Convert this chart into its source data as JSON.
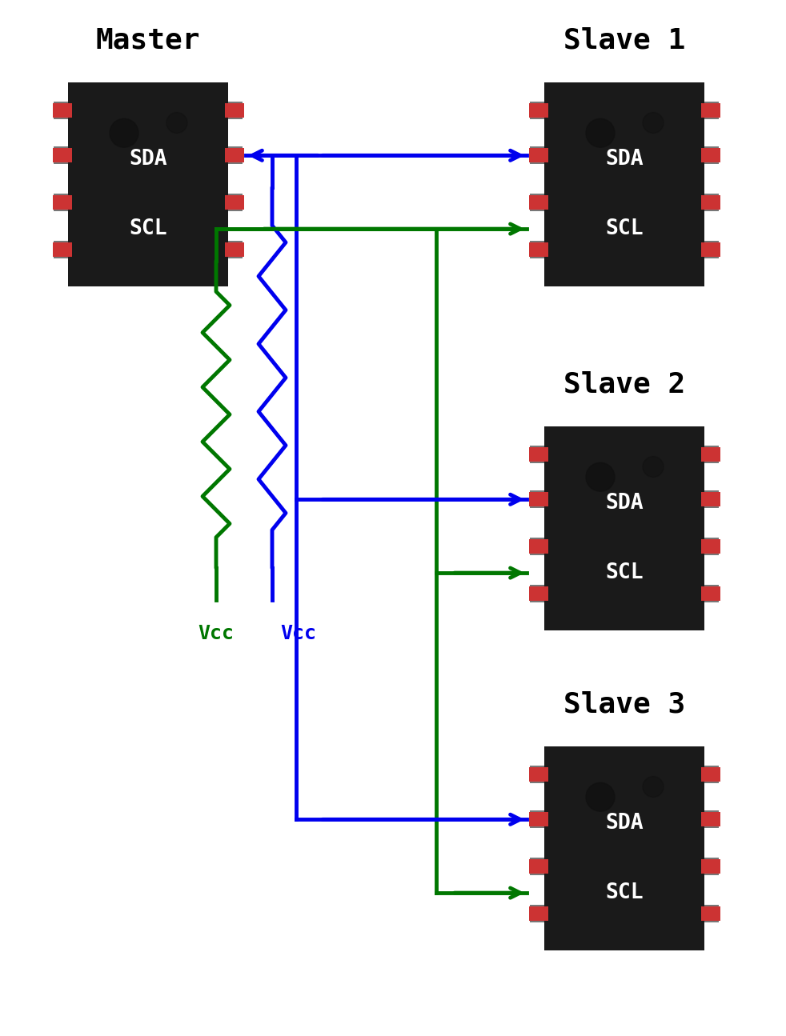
{
  "bg_color": "#ffffff",
  "blue": "#0000EE",
  "green": "#007700",
  "red_pad": "#CC3333",
  "chip_color": "#1a1a1a",
  "pad_color": "#777777",
  "master_label": "Master",
  "slave_labels": [
    "Slave 1",
    "Slave 2",
    "Slave 3"
  ],
  "figsize": [
    9.82,
    12.95
  ],
  "dpi": 100
}
